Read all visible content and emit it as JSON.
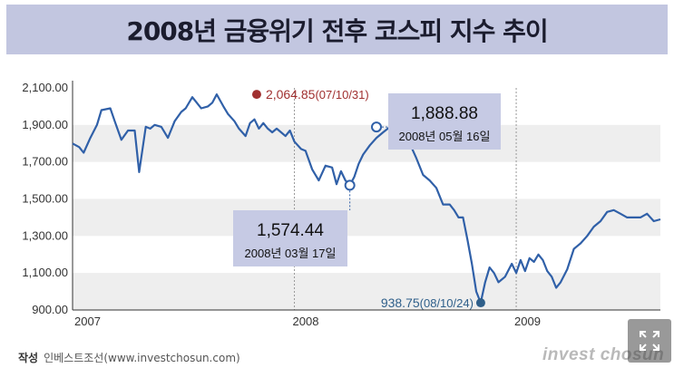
{
  "title": "2008년 금융위기 전후 코스피 지수 추이",
  "credit_label": "작성",
  "credit_text": "인베스트조선(www.investchosun.com)",
  "watermark": "invest chosun",
  "expand_icon": "expand-arrows-icon",
  "colors": {
    "line": "#3060a8",
    "band": "#eeeeee",
    "peak": "#a03030",
    "low": "#2f5f8a",
    "callout_bg": "#c6cae4"
  },
  "chart_data": {
    "type": "line",
    "title": "2008년 금융위기 전후 코스피 지수 추이",
    "x_axis": {
      "labels": [
        "2007",
        "2008",
        "2009"
      ],
      "range": [
        2007.0,
        2009.65
      ]
    },
    "y_axis": {
      "tick_labels": [
        "2,100.00",
        "1,900.00",
        "1,700.00",
        "1,500.00",
        "1,300.00",
        "1,100.00",
        "900.00"
      ],
      "ticks": [
        2100,
        1900,
        1700,
        1500,
        1300,
        1100,
        900
      ],
      "range": [
        900,
        2100
      ]
    },
    "series": [
      {
        "x": [
          2007.0,
          2007.03,
          2007.05,
          2007.08,
          2007.11,
          2007.13,
          2007.17,
          2007.19,
          2007.22,
          2007.25,
          2007.28,
          2007.3,
          2007.33,
          2007.35,
          2007.37,
          2007.4,
          2007.43,
          2007.46,
          2007.49,
          2007.51,
          2007.54,
          2007.56,
          2007.58,
          2007.61,
          2007.63,
          2007.65,
          2007.68,
          2007.7,
          2007.73,
          2007.75,
          2007.78,
          2007.8,
          2007.82,
          2007.84,
          2007.86,
          2007.88,
          2007.9,
          2007.92,
          2007.94,
          2007.96,
          2007.98,
          2008.0,
          2008.03,
          2008.05,
          2008.08,
          2008.11,
          2008.14,
          2008.17,
          2008.19,
          2008.21,
          2008.23,
          2008.25,
          2008.27,
          2008.29,
          2008.31,
          2008.34,
          2008.37,
          2008.4,
          2008.43,
          2008.46,
          2008.49,
          2008.52,
          2008.55,
          2008.58,
          2008.61,
          2008.64,
          2008.67,
          2008.7,
          2008.72,
          2008.74,
          2008.76,
          2008.78,
          2008.8,
          2008.82,
          2008.84,
          2008.86,
          2008.88,
          2008.9,
          2008.92,
          2008.95,
          2008.98,
          2009.0,
          2009.02,
          2009.04,
          2009.06,
          2009.08,
          2009.1,
          2009.12,
          2009.14,
          2009.16,
          2009.18,
          2009.2,
          2009.23,
          2009.26,
          2009.29,
          2009.32,
          2009.35,
          2009.38,
          2009.41,
          2009.44,
          2009.47,
          2009.5,
          2009.53,
          2009.56,
          2009.59,
          2009.62,
          2009.65
        ],
        "y": [
          1800,
          1780,
          1750,
          1830,
          1900,
          1980,
          1990,
          1920,
          1820,
          1870,
          1870,
          1645,
          1890,
          1880,
          1900,
          1890,
          1830,
          1920,
          1970,
          1990,
          2050,
          2020,
          1990,
          2000,
          2020,
          2065,
          2000,
          1960,
          1920,
          1880,
          1840,
          1910,
          1930,
          1880,
          1910,
          1880,
          1860,
          1880,
          1860,
          1840,
          1870,
          1810,
          1770,
          1760,
          1660,
          1600,
          1680,
          1670,
          1580,
          1650,
          1600,
          1574,
          1620,
          1690,
          1740,
          1790,
          1830,
          1860,
          1889,
          1860,
          1830,
          1800,
          1720,
          1630,
          1600,
          1560,
          1470,
          1470,
          1440,
          1400,
          1400,
          1280,
          1150,
          1000,
          939,
          1050,
          1130,
          1100,
          1050,
          1080,
          1150,
          1100,
          1170,
          1110,
          1180,
          1160,
          1200,
          1170,
          1110,
          1080,
          1020,
          1050,
          1120,
          1230,
          1260,
          1300,
          1350,
          1380,
          1430,
          1440,
          1420,
          1400,
          1400,
          1400,
          1420,
          1380,
          1390
        ]
      }
    ],
    "annotations": [
      {
        "value": "2,064.85",
        "date": "(07/10/31)"
      },
      {
        "value": "1,888.88",
        "date": "2008년 05월 16일"
      },
      {
        "value": "1,574.44",
        "date": "2008년 03월 17일"
      },
      {
        "value": "938.75",
        "date": "(08/10/24)"
      }
    ]
  }
}
